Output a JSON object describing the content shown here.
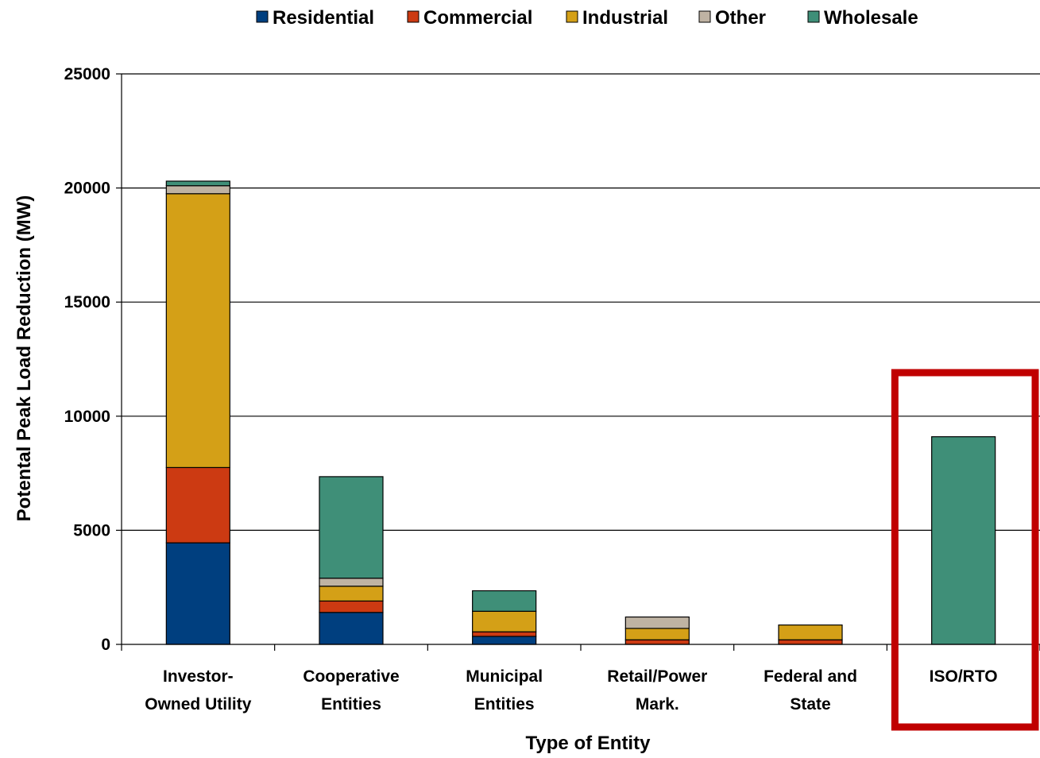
{
  "chart_data": {
    "type": "bar",
    "stacked": true,
    "xlabel": "Type of Entity",
    "ylabel": "Potental Peak Load Reduction (MW)",
    "ylim": [
      0,
      25000
    ],
    "yticks": [
      "0",
      "5000",
      "10000",
      "15000",
      "20000",
      "25000"
    ],
    "grid": true,
    "legend_position": "top",
    "categories": [
      [
        "Investor-",
        "Owned Utility"
      ],
      [
        "Cooperative",
        "Entities"
      ],
      [
        "Municipal",
        "Entities"
      ],
      [
        "Retail/Power",
        "Mark."
      ],
      [
        "Federal and",
        "State"
      ],
      [
        "ISO/RTO"
      ]
    ],
    "series": [
      {
        "name": "Residential",
        "color": "#003f7f",
        "values": [
          4450,
          1400,
          350,
          0,
          0,
          0
        ]
      },
      {
        "name": "Commercial",
        "color": "#cc3a12",
        "values": [
          3300,
          500,
          200,
          200,
          200,
          0
        ]
      },
      {
        "name": "Industrial",
        "color": "#d4a017",
        "values": [
          12000,
          650,
          900,
          500,
          650,
          0
        ]
      },
      {
        "name": "Other",
        "color": "#bfb3a3",
        "values": [
          350,
          350,
          0,
          500,
          0,
          0
        ]
      },
      {
        "name": "Wholesale",
        "color": "#3f8f78",
        "values": [
          200,
          4450,
          900,
          0,
          0,
          9100
        ]
      }
    ],
    "highlight": {
      "category_index": 5,
      "color": "#c00000"
    }
  }
}
